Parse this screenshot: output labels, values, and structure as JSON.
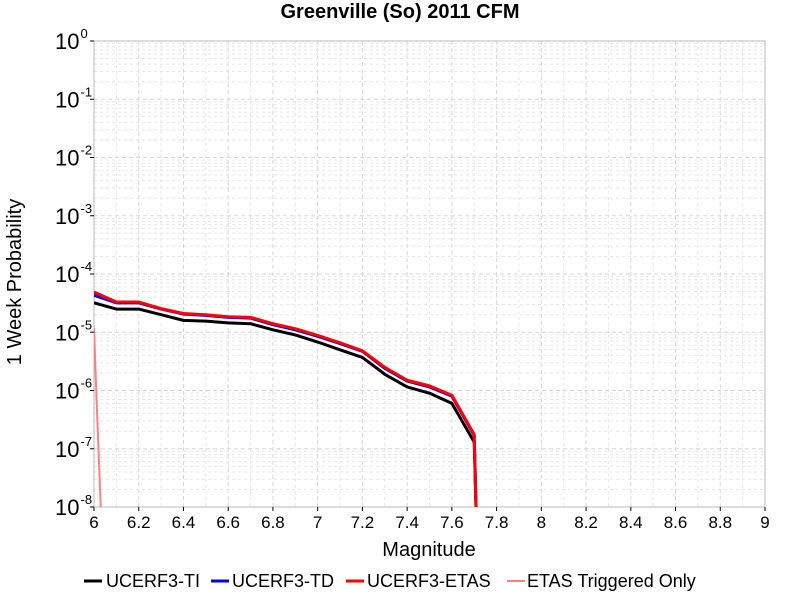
{
  "chart_data": {
    "type": "line",
    "title": "Greenville (So) 2011 CFM",
    "xlabel": "Magnitude",
    "ylabel": "1 Week Probability",
    "xlim": [
      6,
      9
    ],
    "ylim": [
      1e-08,
      1
    ],
    "yscale": "log",
    "grid": true,
    "legend_position": "bottom",
    "x_ticks": [
      "6",
      "6.2",
      "6.4",
      "6.6",
      "6.8",
      "7",
      "7.2",
      "7.4",
      "7.6",
      "7.8",
      "8",
      "8.2",
      "8.4",
      "8.6",
      "8.8",
      "9"
    ],
    "y_ticks": [
      {
        "base": "10",
        "exp": "0"
      },
      {
        "base": "10",
        "exp": "-1"
      },
      {
        "base": "10",
        "exp": "-2"
      },
      {
        "base": "10",
        "exp": "-3"
      },
      {
        "base": "10",
        "exp": "-4"
      },
      {
        "base": "10",
        "exp": "-5"
      },
      {
        "base": "10",
        "exp": "-6"
      },
      {
        "base": "10",
        "exp": "-7"
      },
      {
        "base": "10",
        "exp": "-8"
      }
    ],
    "series": [
      {
        "name": "UCERF3-TI",
        "color": "#000000",
        "width": 3,
        "x": [
          6.0,
          6.1,
          6.2,
          6.3,
          6.4,
          6.5,
          6.6,
          6.7,
          6.8,
          6.9,
          7.0,
          7.1,
          7.2,
          7.3,
          7.4,
          7.5,
          7.6,
          7.7,
          7.71
        ],
        "y": [
          3.2e-05,
          2.5e-05,
          2.5e-05,
          2e-05,
          1.6e-05,
          1.55e-05,
          1.45e-05,
          1.4e-05,
          1.1e-05,
          9e-06,
          6.8e-06,
          5e-06,
          3.7e-06,
          1.9e-06,
          1.15e-06,
          9e-07,
          6e-07,
          1.3e-07,
          5e-09
        ]
      },
      {
        "name": "UCERF3-TD",
        "color": "#0000ff",
        "width": 3,
        "x": [
          6.0,
          6.1,
          6.2,
          6.3,
          6.4,
          6.5,
          6.6,
          6.7,
          6.8,
          6.9,
          7.0,
          7.1,
          7.2,
          7.3,
          7.4,
          7.5,
          7.6,
          7.7,
          7.71
        ],
        "y": [
          4.3e-05,
          3.2e-05,
          3.2e-05,
          2.5e-05,
          2.05e-05,
          1.95e-05,
          1.8e-05,
          1.75e-05,
          1.35e-05,
          1.1e-05,
          8.5e-06,
          6.4e-06,
          4.7e-06,
          2.4e-06,
          1.45e-06,
          1.15e-06,
          8e-07,
          1.7e-07,
          5e-09
        ]
      },
      {
        "name": "UCERF3-ETAS",
        "color": "#ff0000",
        "width": 3,
        "x": [
          6.0,
          6.1,
          6.2,
          6.3,
          6.4,
          6.5,
          6.6,
          6.7,
          6.8,
          6.9,
          7.0,
          7.1,
          7.2,
          7.3,
          7.4,
          7.5,
          7.6,
          7.7,
          7.71
        ],
        "y": [
          4.9e-05,
          3.3e-05,
          3.3e-05,
          2.55e-05,
          2.1e-05,
          2e-05,
          1.85e-05,
          1.8e-05,
          1.4e-05,
          1.15e-05,
          8.8e-06,
          6.6e-06,
          4.8e-06,
          2.5e-06,
          1.5e-06,
          1.2e-06,
          8.3e-07,
          1.75e-07,
          5e-09
        ]
      },
      {
        "name": "ETAS Triggered Only",
        "color": "#ff8080",
        "width": 2,
        "x": [
          6.0,
          6.01,
          6.02,
          6.03,
          6.035
        ],
        "y": [
          1.2e-05,
          1e-06,
          1e-07,
          1e-08,
          5e-09
        ]
      }
    ]
  }
}
